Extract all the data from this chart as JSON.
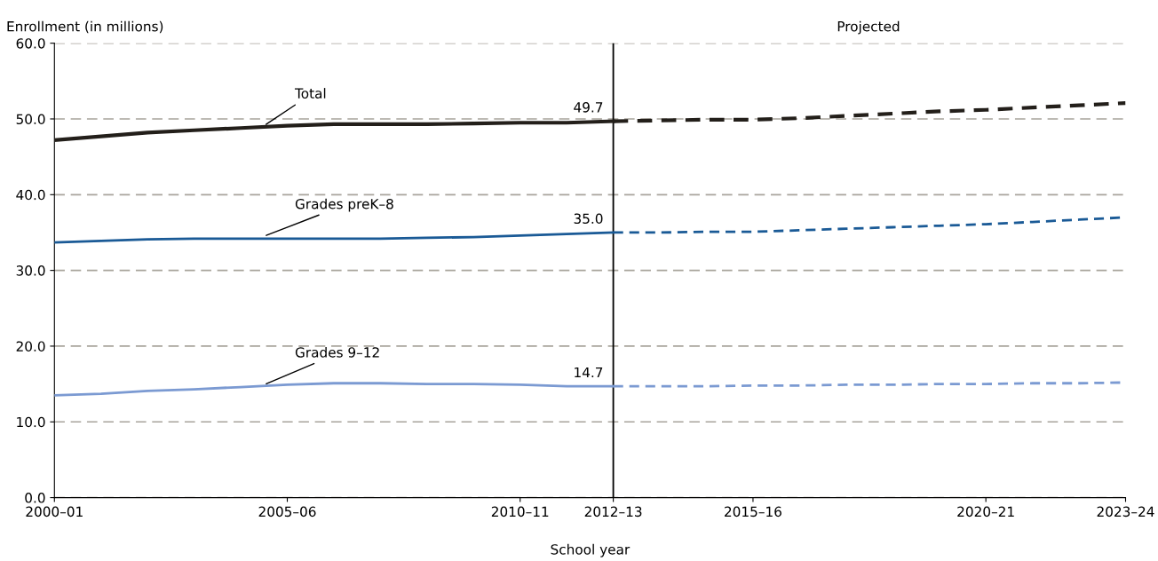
{
  "chart_data": {
    "type": "line",
    "xlabel": "School year",
    "ylabel": "Enrollment (in millions)",
    "categories": [
      "2000–01",
      null,
      null,
      null,
      null,
      "2005–06",
      null,
      null,
      null,
      null,
      "2010–11",
      null,
      "2012–13",
      null,
      null,
      "2015–16",
      null,
      null,
      null,
      null,
      "2020–21",
      null,
      null,
      "2023–24"
    ],
    "ylim": [
      0,
      60
    ],
    "yticks": [
      {
        "value": 0,
        "label": "0.0"
      },
      {
        "value": 10,
        "label": "10.0"
      },
      {
        "value": 20,
        "label": "20.0"
      },
      {
        "value": 30,
        "label": "30.0"
      },
      {
        "value": 40,
        "label": "40.0"
      },
      {
        "value": 50,
        "label": "50.0"
      },
      {
        "value": 60,
        "label": "60.0"
      }
    ],
    "grid": "y",
    "legend": false,
    "series": [
      {
        "name": "Total",
        "color": "#231f1a",
        "line_style": "solid",
        "values": [
          47.2,
          47.7,
          48.2,
          48.5,
          48.8,
          49.1,
          49.3,
          49.3,
          49.3,
          49.4,
          49.5,
          49.5,
          49.7,
          null,
          null,
          null,
          null,
          null,
          null,
          null,
          null,
          null,
          null,
          null
        ]
      },
      {
        "color": "#231f1a",
        "line_style": "dashed",
        "values": [
          null,
          null,
          null,
          null,
          null,
          null,
          null,
          null,
          null,
          null,
          null,
          null,
          49.7,
          49.8,
          49.9,
          49.9,
          50.1,
          50.4,
          50.7,
          51.0,
          51.2,
          51.5,
          51.8,
          52.1
        ]
      },
      {
        "name": "Grades preK–8",
        "color": "#1a5a96",
        "line_style": "solid",
        "values": [
          33.7,
          33.9,
          34.1,
          34.2,
          34.2,
          34.2,
          34.2,
          34.2,
          34.3,
          34.4,
          34.6,
          34.8,
          35.0,
          null,
          null,
          null,
          null,
          null,
          null,
          null,
          null,
          null,
          null,
          null
        ]
      },
      {
        "color": "#1a5a96",
        "line_style": "dashed",
        "values": [
          null,
          null,
          null,
          null,
          null,
          null,
          null,
          null,
          null,
          null,
          null,
          null,
          35.0,
          35.0,
          35.1,
          35.1,
          35.3,
          35.5,
          35.7,
          35.9,
          36.1,
          36.4,
          36.7,
          37.0
        ]
      },
      {
        "name": "Grades 9–12",
        "color": "#7b9ad2",
        "line_style": "solid",
        "values": [
          13.5,
          13.7,
          14.1,
          14.3,
          14.6,
          14.9,
          15.1,
          15.1,
          15.0,
          15.0,
          14.9,
          14.7,
          14.7,
          null,
          null,
          null,
          null,
          null,
          null,
          null,
          null,
          null,
          null,
          null
        ]
      },
      {
        "color": "#7b9ad2",
        "line_style": "dashed",
        "values": [
          null,
          null,
          null,
          null,
          null,
          null,
          null,
          null,
          null,
          null,
          null,
          null,
          14.7,
          14.7,
          14.7,
          14.8,
          14.8,
          14.9,
          14.9,
          15.0,
          15.0,
          15.1,
          15.1,
          15.2
        ]
      }
    ],
    "ref_lines": [
      {
        "axis": "x",
        "value": "2012–13",
        "color": "#000000",
        "line_style": "solid"
      }
    ],
    "annotations": [
      "Projected",
      {
        "text": "49.7",
        "x": "2012–13",
        "y": 49.7
      },
      {
        "text": "35.0",
        "x": "2012–13",
        "y": 35.0
      },
      {
        "text": "14.7",
        "x": "2012–13",
        "y": 14.7
      }
    ]
  }
}
